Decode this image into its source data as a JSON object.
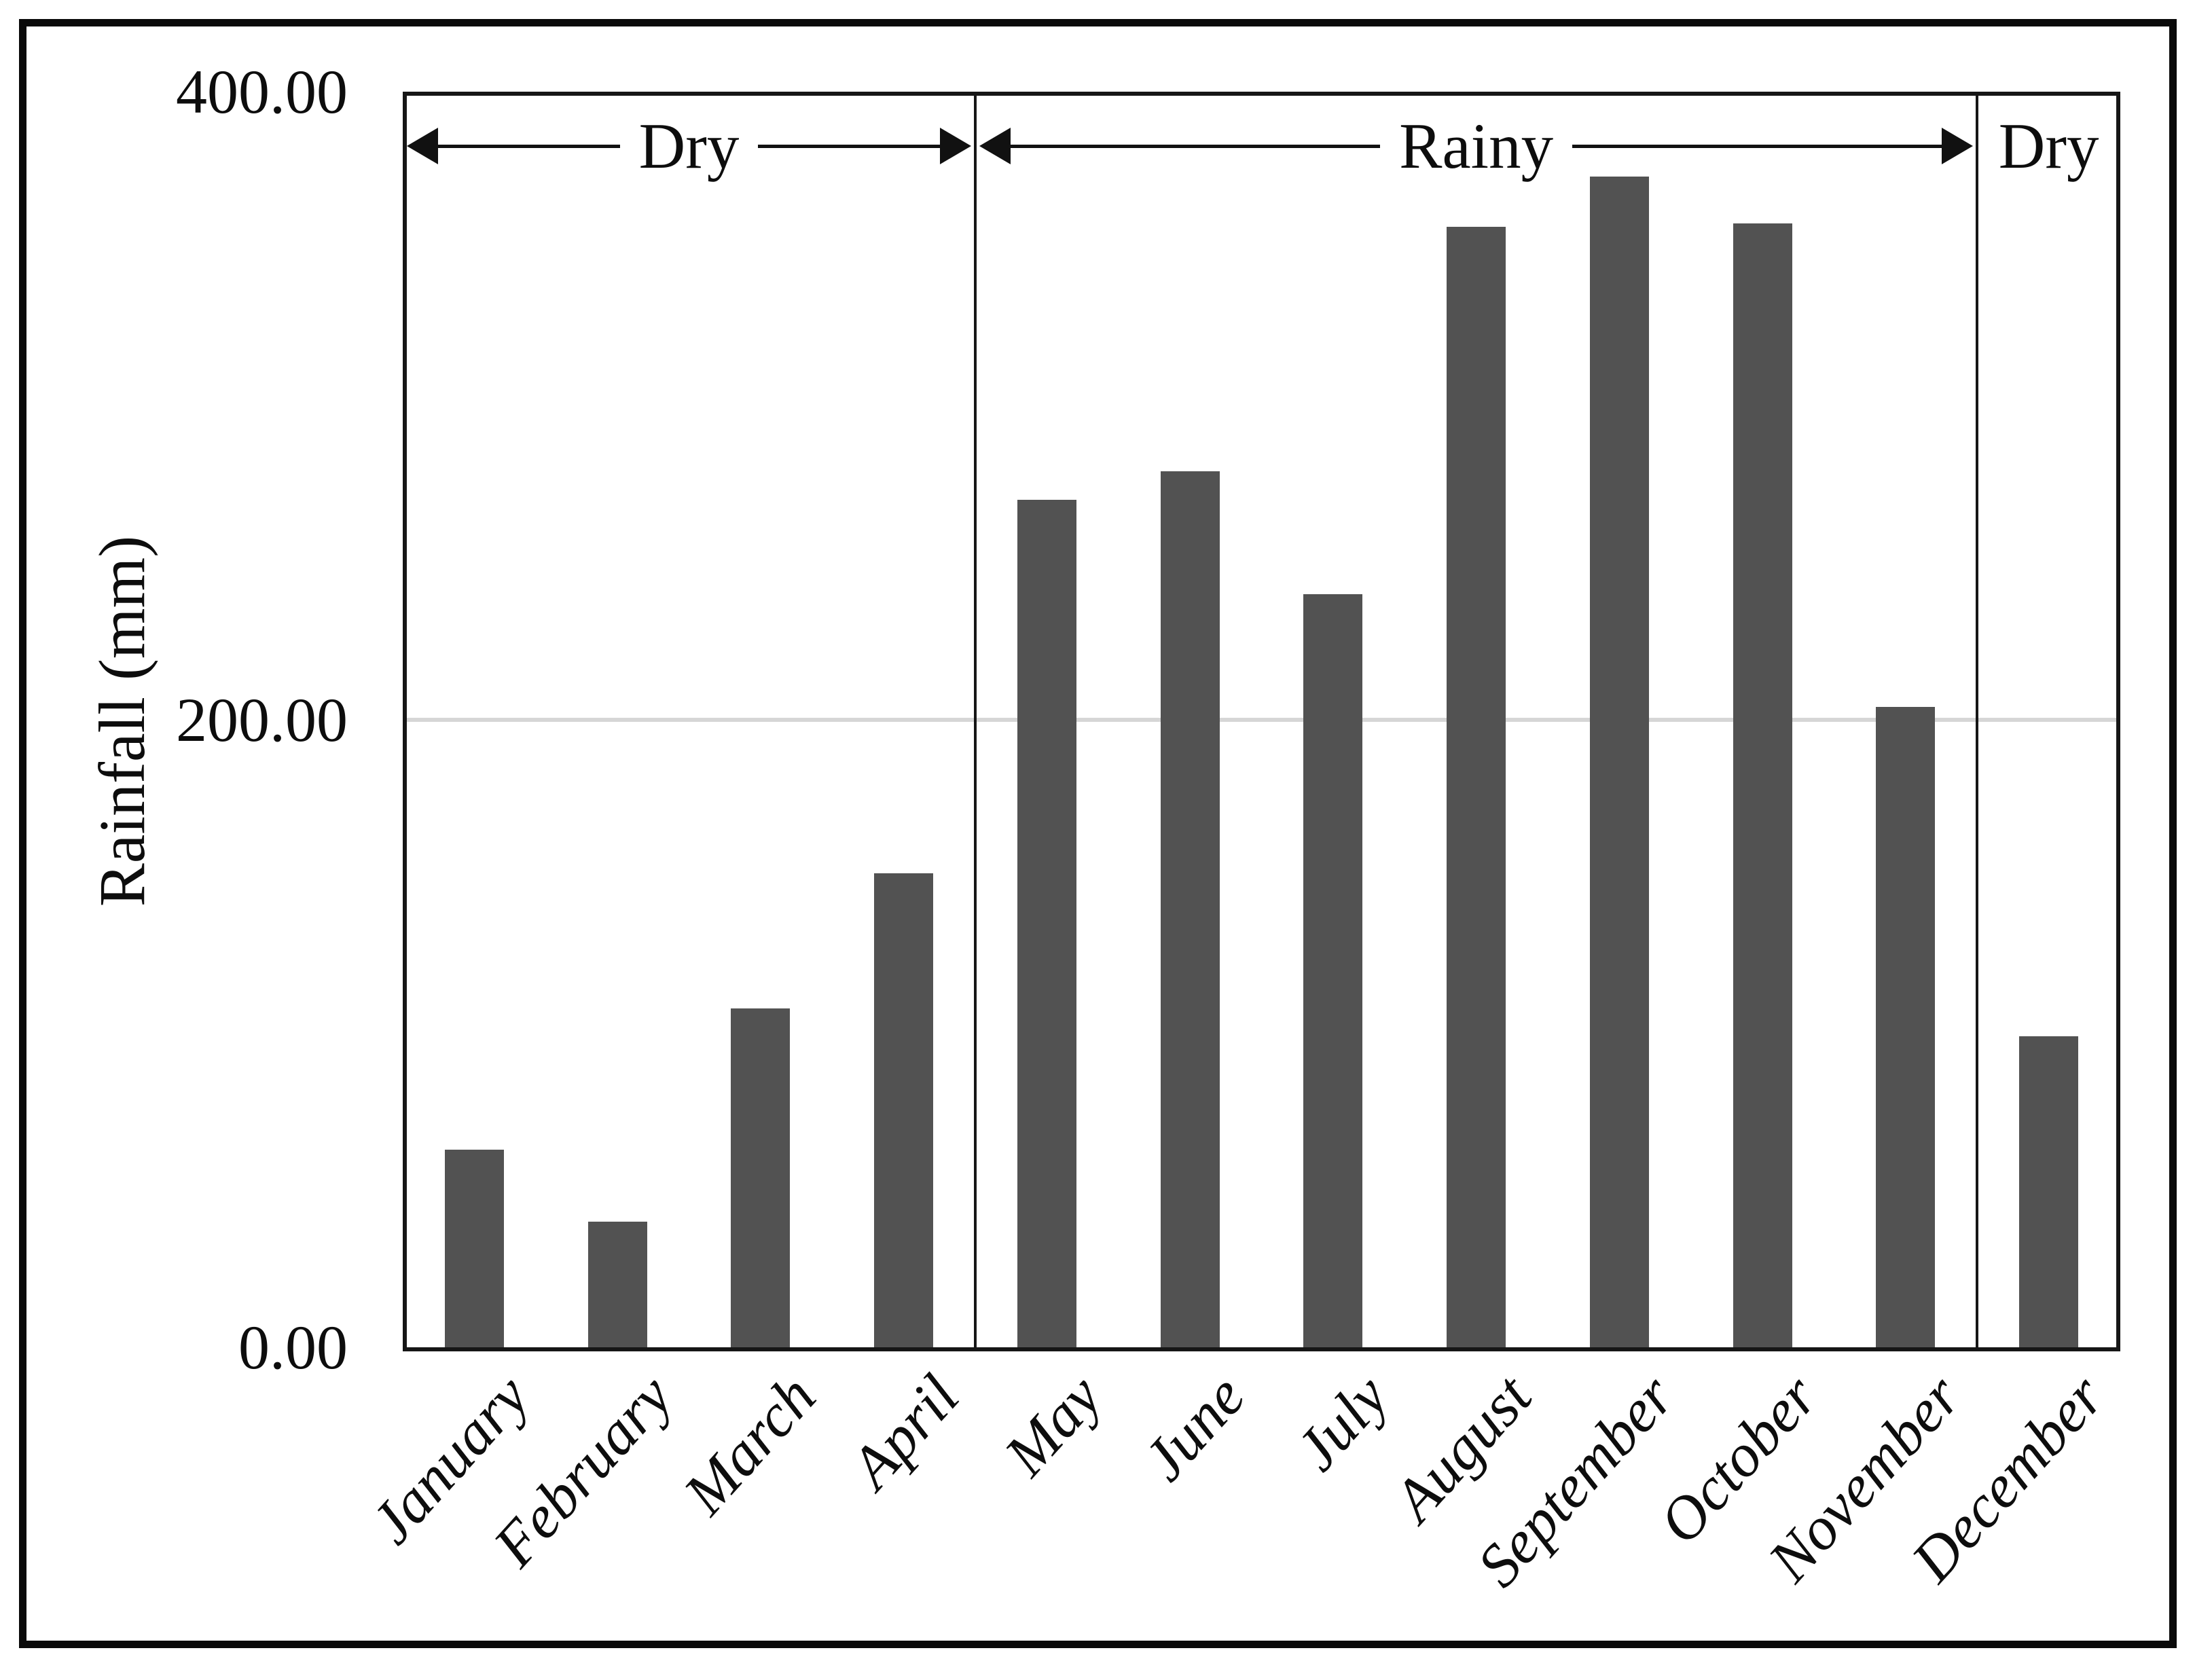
{
  "chart_data": {
    "type": "bar",
    "title": "",
    "xlabel": "",
    "ylabel": "Rainfall (mm)",
    "categories": [
      "January",
      "February",
      "March",
      "April",
      "May",
      "June",
      "July",
      "August",
      "September",
      "October",
      "November",
      "December"
    ],
    "values": [
      63,
      40,
      108,
      151,
      270,
      279,
      240,
      357,
      373,
      358,
      204,
      99
    ],
    "ylim": [
      0,
      400
    ],
    "ytick_values": [
      400,
      200,
      0
    ],
    "ytick_labels": [
      "400.00",
      "200.00",
      "0.00"
    ],
    "grid_values": [
      200
    ],
    "grid": "horizontal",
    "legend_position": "none",
    "bar_color": "#525252",
    "seasons": [
      {
        "label": "Dry",
        "from_index": 0,
        "to_index": 3,
        "arrows": true
      },
      {
        "label": "Rainy",
        "from_index": 4,
        "to_index": 10,
        "arrows": true
      },
      {
        "label": "Dry",
        "from_index": 11,
        "to_index": 11,
        "arrows": false
      }
    ]
  },
  "colors": {
    "bar": "#525252",
    "gridline": "#d6d6d6",
    "axis": "#161616",
    "frame": "#0a0a0a",
    "text": "#0d0d0d",
    "background": "#ffffff"
  }
}
